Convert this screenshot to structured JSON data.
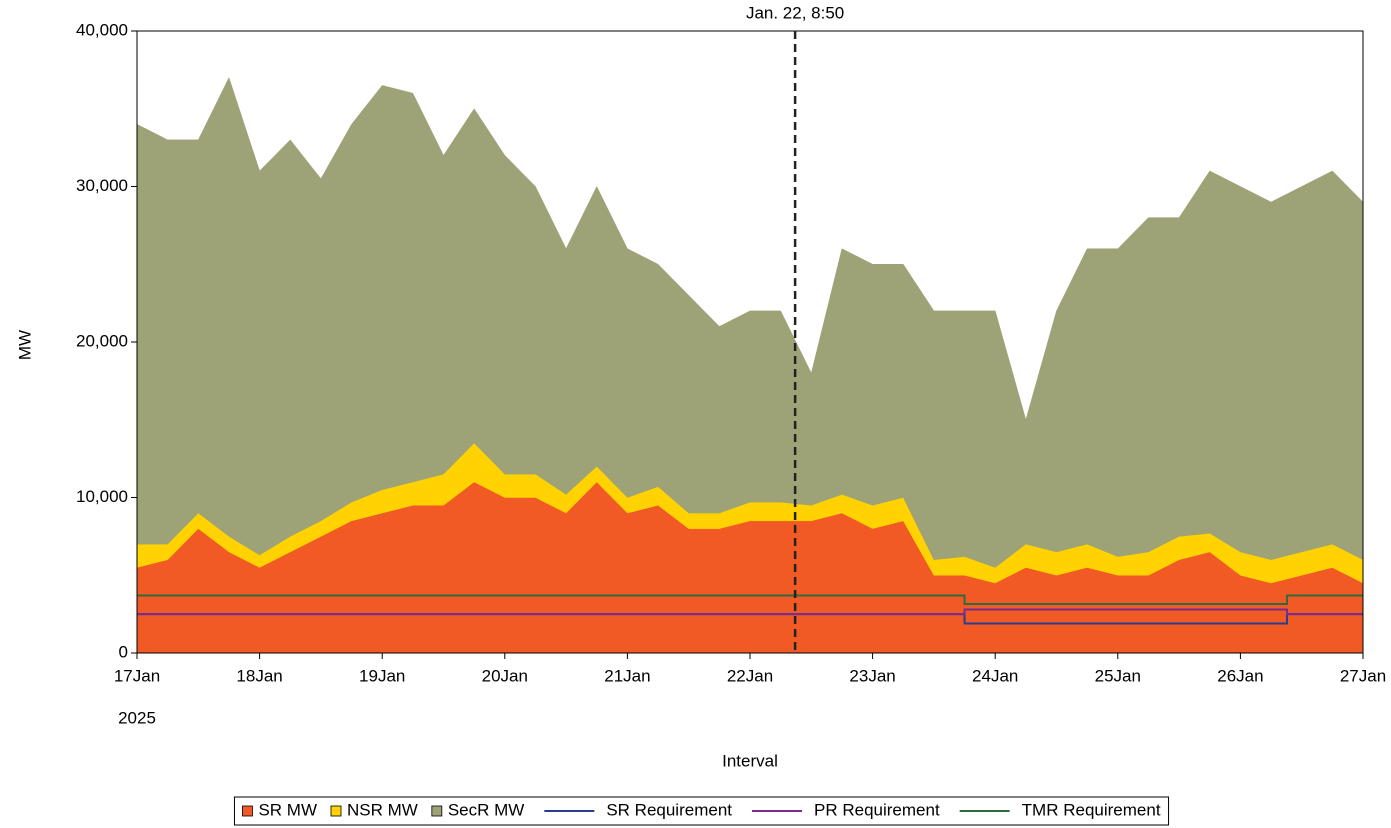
{
  "chart_data": {
    "type": "stacked-area",
    "x_label": "Interval",
    "y_label": "MW",
    "x_year_label": "2025",
    "xlim": [
      17,
      27
    ],
    "xticks": [
      {
        "value": 17,
        "label": "17Jan"
      },
      {
        "value": 18,
        "label": "18Jan"
      },
      {
        "value": 19,
        "label": "19Jan"
      },
      {
        "value": 20,
        "label": "20Jan"
      },
      {
        "value": 21,
        "label": "21Jan"
      },
      {
        "value": 22,
        "label": "22Jan"
      },
      {
        "value": 23,
        "label": "23Jan"
      },
      {
        "value": 24,
        "label": "24Jan"
      },
      {
        "value": 25,
        "label": "25Jan"
      },
      {
        "value": 26,
        "label": "26Jan"
      },
      {
        "value": 27,
        "label": "27Jan"
      }
    ],
    "ylim": [
      0,
      40000
    ],
    "yticks": [
      0,
      {
        "value": 10000,
        "label": "10,000"
      },
      {
        "value": 20000,
        "label": "20,000"
      },
      {
        "value": 30000,
        "label": "30,000"
      },
      {
        "value": 40000,
        "label": "40,000"
      }
    ],
    "annotation": {
      "x": 22.368,
      "label": "Jan. 22, 8:50"
    },
    "x": [
      17,
      17.25,
      17.5,
      17.75,
      18,
      18.25,
      18.5,
      18.75,
      19,
      19.25,
      19.5,
      19.75,
      20,
      20.25,
      20.5,
      20.75,
      21,
      21.25,
      21.5,
      21.75,
      22,
      22.25,
      22.5,
      22.75,
      23,
      23.25,
      23.5,
      23.75,
      24,
      24.25,
      24.5,
      24.75,
      25,
      25.25,
      25.5,
      25.75,
      26,
      26.25,
      26.5,
      26.75,
      27
    ],
    "series": [
      {
        "name": "SR MW",
        "kind": "area",
        "color": "#f15a24",
        "values": [
          5500,
          6000,
          8000,
          6500,
          5500,
          6500,
          7500,
          8500,
          9000,
          9500,
          9500,
          11000,
          10000,
          10000,
          9000,
          11000,
          9000,
          9500,
          8000,
          8000,
          8500,
          8500,
          8500,
          9000,
          8000,
          8500,
          5000,
          5000,
          4500,
          5500,
          5000,
          5500,
          5000,
          5000,
          6000,
          6500,
          5000,
          4500,
          5000,
          5500,
          4500
        ]
      },
      {
        "name": "NSR MW",
        "kind": "area",
        "color": "#ffd200",
        "values": [
          1500,
          1000,
          1000,
          1000,
          800,
          1000,
          1000,
          1200,
          1500,
          1500,
          2000,
          2500,
          1500,
          1500,
          1200,
          1000,
          1000,
          1200,
          1000,
          1000,
          1200,
          1200,
          1000,
          1200,
          1500,
          1500,
          1000,
          1200,
          1000,
          1500,
          1500,
          1500,
          1200,
          1500,
          1500,
          1200,
          1500,
          1500,
          1500,
          1500,
          1500
        ]
      },
      {
        "name": "SecR MW",
        "kind": "area",
        "color": "#9ea277",
        "values": [
          27000,
          26000,
          24000,
          29500,
          24700,
          25500,
          22000,
          24300,
          26000,
          25000,
          20500,
          21500,
          20500,
          18500,
          15800,
          18000,
          16000,
          14300,
          14000,
          12000,
          12300,
          12300,
          8500,
          15800,
          15500,
          15000,
          16000,
          15800,
          16500,
          8000,
          15500,
          19000,
          19800,
          21500,
          20500,
          23300,
          23500,
          23000,
          23500,
          24000,
          23000
        ]
      },
      {
        "name": "SR Requirement",
        "kind": "line",
        "color": "#2b3d8f",
        "x": [
          17,
          23.75,
          23.75,
          26.38,
          26.38,
          27
        ],
        "values": [
          2500,
          2500,
          1900,
          1900,
          2500,
          2500
        ]
      },
      {
        "name": "PR Requirement",
        "kind": "line",
        "color": "#7b2d8e",
        "x": [
          17,
          23.75,
          23.75,
          26.38,
          26.38,
          27
        ],
        "values": [
          2500,
          2500,
          2800,
          2800,
          2500,
          2500
        ]
      },
      {
        "name": "TMR Requirement",
        "kind": "line",
        "color": "#2e6b3e",
        "x": [
          17,
          23.75,
          23.75,
          26.38,
          26.38,
          27
        ],
        "values": [
          3700,
          3700,
          3150,
          3150,
          3700,
          3700
        ]
      }
    ]
  }
}
